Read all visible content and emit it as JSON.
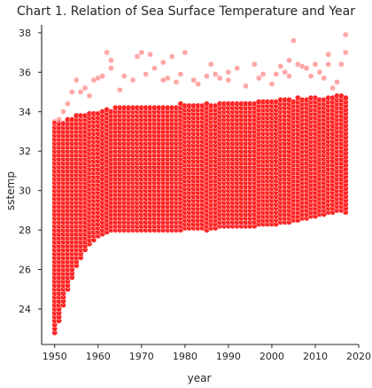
{
  "chart_data": {
    "type": "scatter",
    "title": "Chart 1. Relation of Sea Surface Temperature and Year",
    "xlabel": "year",
    "ylabel": "sstemp",
    "xlim": [
      1947,
      2020
    ],
    "ylim": [
      22.2,
      38.4
    ],
    "xticks": [
      1950,
      1960,
      1970,
      1980,
      1990,
      2000,
      2010,
      2020
    ],
    "yticks": [
      24,
      26,
      28,
      30,
      32,
      34,
      36,
      38
    ],
    "grid": false,
    "legend": "none",
    "colors": {
      "point": "#ff0000",
      "edge": "#ffffff",
      "axis": "#262626"
    },
    "series": [
      {
        "x_range": [
          1950,
          2017
        ],
        "x_step": 1,
        "y_step": 0.2,
        "max_by_year": [
          33.4,
          33.4,
          33.5,
          33.6,
          33.7,
          33.8,
          33.8,
          33.9,
          34.0,
          34.0,
          34.0,
          34.1,
          34.1,
          34.1,
          34.2,
          34.2,
          34.2,
          34.2,
          34.2,
          34.2,
          34.3,
          34.3,
          34.3,
          34.3,
          34.3,
          34.3,
          34.3,
          34.3,
          34.3,
          34.4,
          34.4,
          34.4,
          34.4,
          34.4,
          34.4,
          34.4,
          34.4,
          34.4,
          34.4,
          34.5,
          34.5,
          34.5,
          34.5,
          34.5,
          34.5,
          34.5,
          34.5,
          34.5,
          34.6,
          34.6,
          34.6,
          34.6,
          34.6,
          34.6,
          34.6,
          34.6,
          34.7,
          34.7,
          34.7,
          34.7,
          34.7,
          34.7,
          34.7,
          34.8,
          34.8,
          34.8,
          34.8,
          34.8
        ],
        "min_by_year": [
          22.8,
          23.4,
          24.2,
          25.0,
          25.6,
          26.2,
          26.6,
          27.0,
          27.3,
          27.5,
          27.7,
          27.8,
          27.9,
          28.0,
          28.0,
          28.0,
          28.0,
          28.0,
          28.0,
          28.0,
          28.0,
          28.0,
          28.0,
          28.0,
          28.0,
          28.0,
          28.0,
          28.0,
          28.0,
          28.0,
          28.1,
          28.1,
          28.1,
          28.1,
          28.1,
          28.0,
          28.1,
          28.1,
          28.2,
          28.2,
          28.2,
          28.2,
          28.2,
          28.2,
          28.2,
          28.2,
          28.2,
          28.3,
          28.3,
          28.3,
          28.3,
          28.3,
          28.4,
          28.4,
          28.4,
          28.5,
          28.5,
          28.6,
          28.6,
          28.7,
          28.7,
          28.8,
          28.8,
          28.9,
          28.9,
          29.0,
          29.0,
          28.9
        ],
        "outliers": [
          [
            1950,
            33.5
          ],
          [
            1951,
            33.6
          ],
          [
            1952,
            34.0
          ],
          [
            1953,
            34.4
          ],
          [
            1954,
            35.0
          ],
          [
            1955,
            35.6
          ],
          [
            1956,
            35.0
          ],
          [
            1957,
            35.2
          ],
          [
            1958,
            34.8
          ],
          [
            1959,
            35.6
          ],
          [
            1960,
            35.7
          ],
          [
            1961,
            35.8
          ],
          [
            1962,
            37.0
          ],
          [
            1963,
            36.2
          ],
          [
            1965,
            35.1
          ],
          [
            1966,
            35.8
          ],
          [
            1968,
            35.6
          ],
          [
            1969,
            36.8
          ],
          [
            1970,
            37.0
          ],
          [
            1971,
            35.9
          ],
          [
            1972,
            36.9
          ],
          [
            1973,
            36.2
          ],
          [
            1975,
            36.5
          ],
          [
            1976,
            35.7
          ],
          [
            1977,
            36.8
          ],
          [
            1978,
            35.5
          ],
          [
            1979,
            35.9
          ],
          [
            1980,
            37.0
          ],
          [
            1982,
            35.6
          ],
          [
            1983,
            35.4
          ],
          [
            1985,
            35.8
          ],
          [
            1986,
            36.4
          ],
          [
            1987,
            35.9
          ],
          [
            1988,
            35.7
          ],
          [
            1990,
            36.0
          ],
          [
            1992,
            36.2
          ],
          [
            1994,
            35.3
          ],
          [
            1996,
            36.4
          ],
          [
            1997,
            35.7
          ],
          [
            1998,
            35.9
          ],
          [
            2000,
            35.4
          ],
          [
            2001,
            35.9
          ],
          [
            2002,
            36.3
          ],
          [
            2003,
            36.0
          ],
          [
            2004,
            35.8
          ],
          [
            2005,
            37.6
          ],
          [
            2006,
            36.4
          ],
          [
            2007,
            36.3
          ],
          [
            2008,
            36.2
          ],
          [
            2009,
            35.8
          ],
          [
            2010,
            36.4
          ],
          [
            2011,
            36.0
          ],
          [
            2012,
            35.7
          ],
          [
            2013,
            36.4
          ],
          [
            2014,
            35.2
          ],
          [
            2015,
            35.5
          ],
          [
            2016,
            36.4
          ],
          [
            2017,
            37.9
          ],
          [
            1963,
            36.6
          ],
          [
            1975,
            35.6
          ],
          [
            1990,
            35.6
          ],
          [
            2004,
            36.6
          ],
          [
            2013,
            36.9
          ],
          [
            2017,
            37.0
          ]
        ]
      }
    ]
  }
}
